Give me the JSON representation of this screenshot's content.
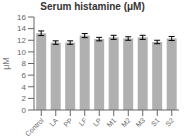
{
  "chart_data": {
    "type": "bar",
    "title": "Serum histamine (μM)",
    "ylabel": "μM",
    "categories": [
      "Control",
      "LA",
      "PP",
      "LF",
      "LP",
      "M1",
      "M2",
      "M3",
      "S1",
      "S2"
    ],
    "values": [
      13.2,
      11.6,
      11.6,
      12.8,
      12.2,
      12.5,
      12.3,
      12.5,
      11.7,
      12.3
    ],
    "errors": [
      0.4,
      0.3,
      0.3,
      0.35,
      0.3,
      0.35,
      0.3,
      0.35,
      0.3,
      0.35
    ],
    "color": "#b0b0b0",
    "ylim": [
      0,
      16
    ],
    "yticks": [
      0,
      2,
      4,
      6,
      8,
      10,
      12,
      14,
      16
    ],
    "grid": false
  }
}
